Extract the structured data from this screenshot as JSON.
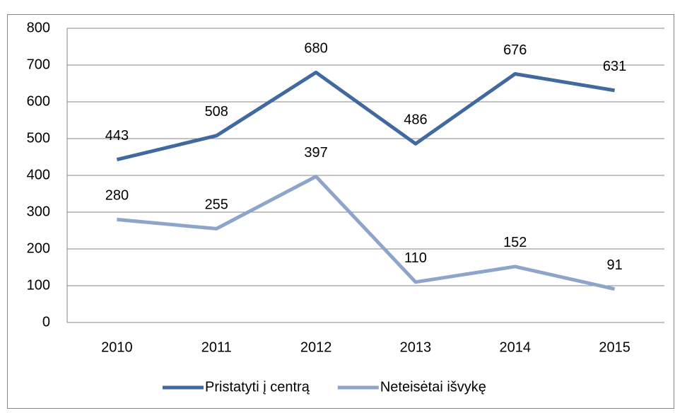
{
  "chart_data": {
    "type": "line",
    "categories": [
      "2010",
      "2011",
      "2012",
      "2013",
      "2014",
      "2015"
    ],
    "series": [
      {
        "name": "Pristatyti į centrą",
        "color": "#41699f",
        "values": [
          443,
          508,
          680,
          486,
          676,
          631
        ]
      },
      {
        "name": "Neteisėtai išvykę",
        "color": "#8ea5cb",
        "values": [
          280,
          255,
          397,
          110,
          152,
          91
        ]
      }
    ],
    "ylim": [
      0,
      800
    ],
    "yticks": [
      0,
      100,
      200,
      300,
      400,
      500,
      600,
      700,
      800
    ],
    "grid": true,
    "legend": "bottom"
  }
}
